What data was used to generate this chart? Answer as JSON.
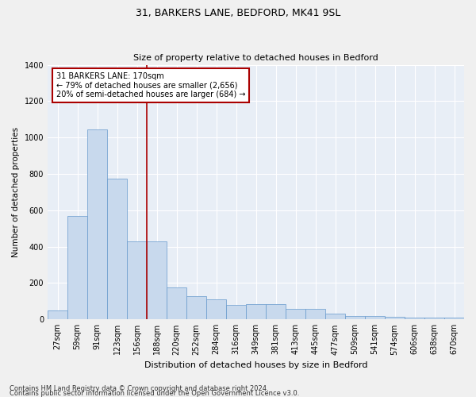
{
  "title1": "31, BARKERS LANE, BEDFORD, MK41 9SL",
  "title2": "Size of property relative to detached houses in Bedford",
  "xlabel": "Distribution of detached houses by size in Bedford",
  "ylabel": "Number of detached properties",
  "footer1": "Contains HM Land Registry data © Crown copyright and database right 2024.",
  "footer2": "Contains public sector information licensed under the Open Government Licence v3.0.",
  "annotation_line1": "31 BARKERS LANE: 170sqm",
  "annotation_line2": "← 79% of detached houses are smaller (2,656)",
  "annotation_line3": "20% of semi-detached houses are larger (684) →",
  "categories": [
    "27sqm",
    "59sqm",
    "91sqm",
    "123sqm",
    "156sqm",
    "188sqm",
    "220sqm",
    "252sqm",
    "284sqm",
    "316sqm",
    "349sqm",
    "381sqm",
    "413sqm",
    "445sqm",
    "477sqm",
    "509sqm",
    "541sqm",
    "574sqm",
    "606sqm",
    "638sqm",
    "670sqm"
  ],
  "values": [
    50,
    570,
    1045,
    775,
    430,
    430,
    175,
    130,
    110,
    80,
    85,
    85,
    60,
    60,
    30,
    20,
    20,
    15,
    10,
    10,
    10
  ],
  "bar_color": "#c8d9ed",
  "bar_edgecolor": "#6699cc",
  "plot_bg_color": "#e8eef6",
  "fig_bg_color": "#f0f0f0",
  "grid_color": "#ffffff",
  "red_line_color": "#aa0000",
  "red_line_index": 4.5,
  "ylim": [
    0,
    1400
  ],
  "yticks": [
    0,
    200,
    400,
    600,
    800,
    1000,
    1200,
    1400
  ],
  "title1_fontsize": 9,
  "title2_fontsize": 8,
  "tick_fontsize": 7,
  "ylabel_fontsize": 7.5,
  "xlabel_fontsize": 8,
  "annotation_fontsize": 7,
  "footer_fontsize": 6
}
